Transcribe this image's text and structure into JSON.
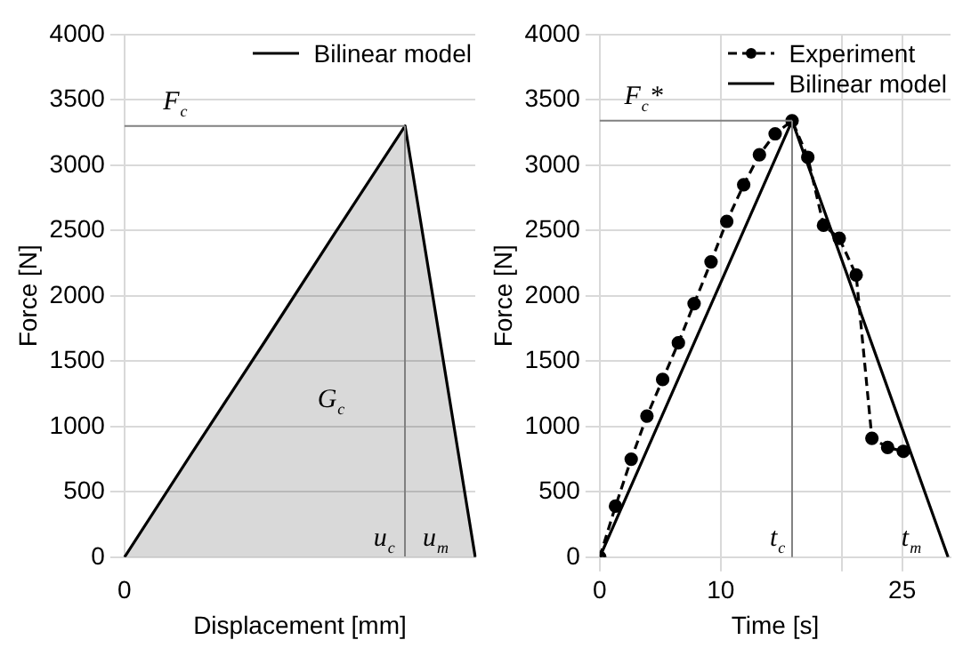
{
  "chart_data": [
    {
      "type": "area",
      "xlabel": "Displacement [mm]",
      "ylabel": "Force [N]",
      "categories": [
        "0",
        null,
        null,
        null,
        null,
        null
      ],
      "series": [
        {
          "name": "Bilinear model",
          "color": "#000000",
          "values": [
            0,
            830,
            1650,
            2480,
            3300,
            0
          ],
          "marker": "none",
          "line_style": "solid"
        }
      ],
      "ylim": [
        0,
        4000
      ],
      "yticks": [
        0,
        500,
        1000,
        1500,
        2000,
        2500,
        3000,
        3500,
        4000
      ],
      "grid": "y",
      "legend": "top right",
      "ref_lines": [
        {
          "axis": "y",
          "value": 3300,
          "color": "#808080"
        }
      ],
      "annotations": [
        "F$_{c}$",
        "G$_{c}$",
        "u$_{c}$",
        "u$_{m}$"
      ]
    },
    {
      "type": "line",
      "xlabel": "Time [s]",
      "ylabel": "Force [N]",
      "series": [
        {
          "name": "Experiment",
          "color": "#000000",
          "marker": "circle",
          "line_style": "dashed",
          "x": [
            0,
            1.3,
            2.6,
            3.9,
            5.2,
            6.5,
            7.8,
            9.2,
            10.5,
            11.9,
            13.2,
            14.5,
            15.9,
            17.2,
            18.5,
            19.8,
            21.2,
            22.5,
            23.8,
            25.1
          ],
          "values": [
            0,
            390,
            750,
            1080,
            1360,
            1640,
            1940,
            2260,
            2570,
            2850,
            3080,
            3240,
            3340,
            3060,
            2540,
            2440,
            2160,
            910,
            840,
            810
          ]
        },
        {
          "name": "Bilinear model",
          "color": "#000000",
          "marker": "none",
          "line_style": "solid",
          "x": [
            0,
            15.9,
            28.8
          ],
          "values": [
            0,
            3340,
            0
          ]
        }
      ],
      "xlim": [
        0,
        29
      ],
      "xticks": [
        0,
        10,
        {
          "value": 20,
          "label": null
        },
        25
      ],
      "ylim": [
        0,
        4000
      ],
      "yticks": [
        0,
        500,
        1000,
        1500,
        2000,
        2500,
        3000,
        3500,
        4000
      ],
      "grid": true,
      "legend": "top right",
      "ref_lines": [
        {
          "axis": "y",
          "value": 3340,
          "color": "#808080"
        },
        {
          "axis": "x",
          "value": 15.9,
          "color": "#808080"
        }
      ],
      "annotations": [
        "F$_{c}$*",
        "t$_{c}$",
        "t$_{m}$"
      ]
    }
  ]
}
